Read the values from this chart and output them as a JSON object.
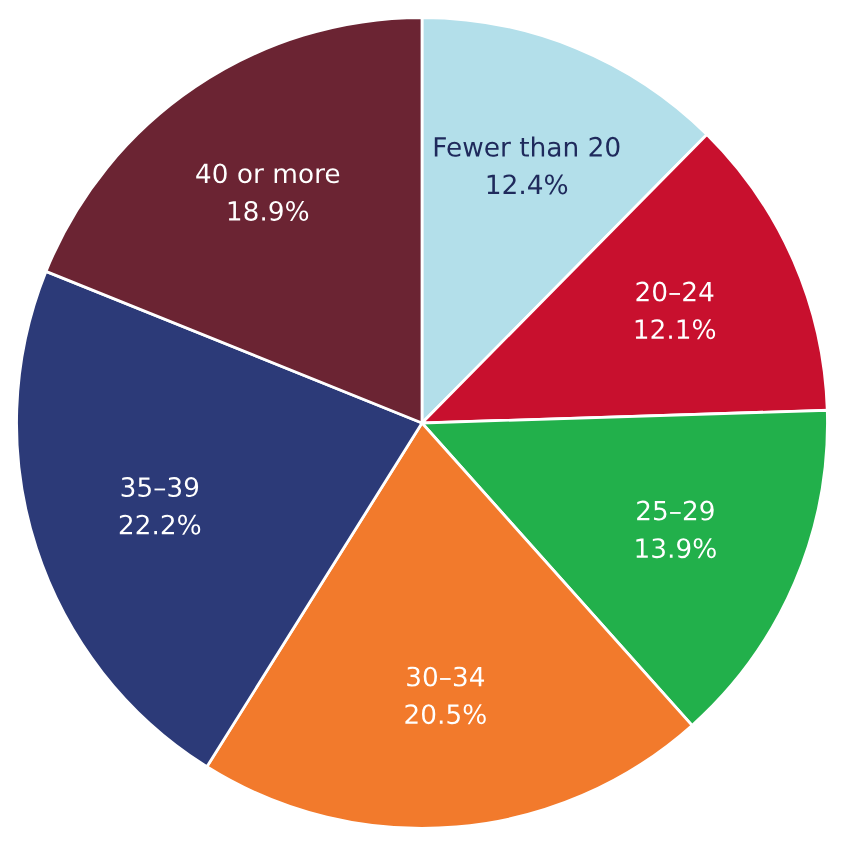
{
  "chart_data": {
    "type": "pie",
    "categories": [
      "Fewer than 20",
      "20–24",
      "25–29",
      "30–34",
      "35–39",
      "40 or more"
    ],
    "values": [
      12.4,
      12.1,
      13.9,
      20.5,
      22.2,
      18.9
    ],
    "colors": [
      "#b3dfea",
      "#c8102e",
      "#22b04b",
      "#f27a2c",
      "#2c3a78",
      "#6b2433"
    ],
    "value_labels": [
      "12.4%",
      "12.1%",
      "13.9%",
      "20.5%",
      "22.2%",
      "18.9%"
    ]
  }
}
